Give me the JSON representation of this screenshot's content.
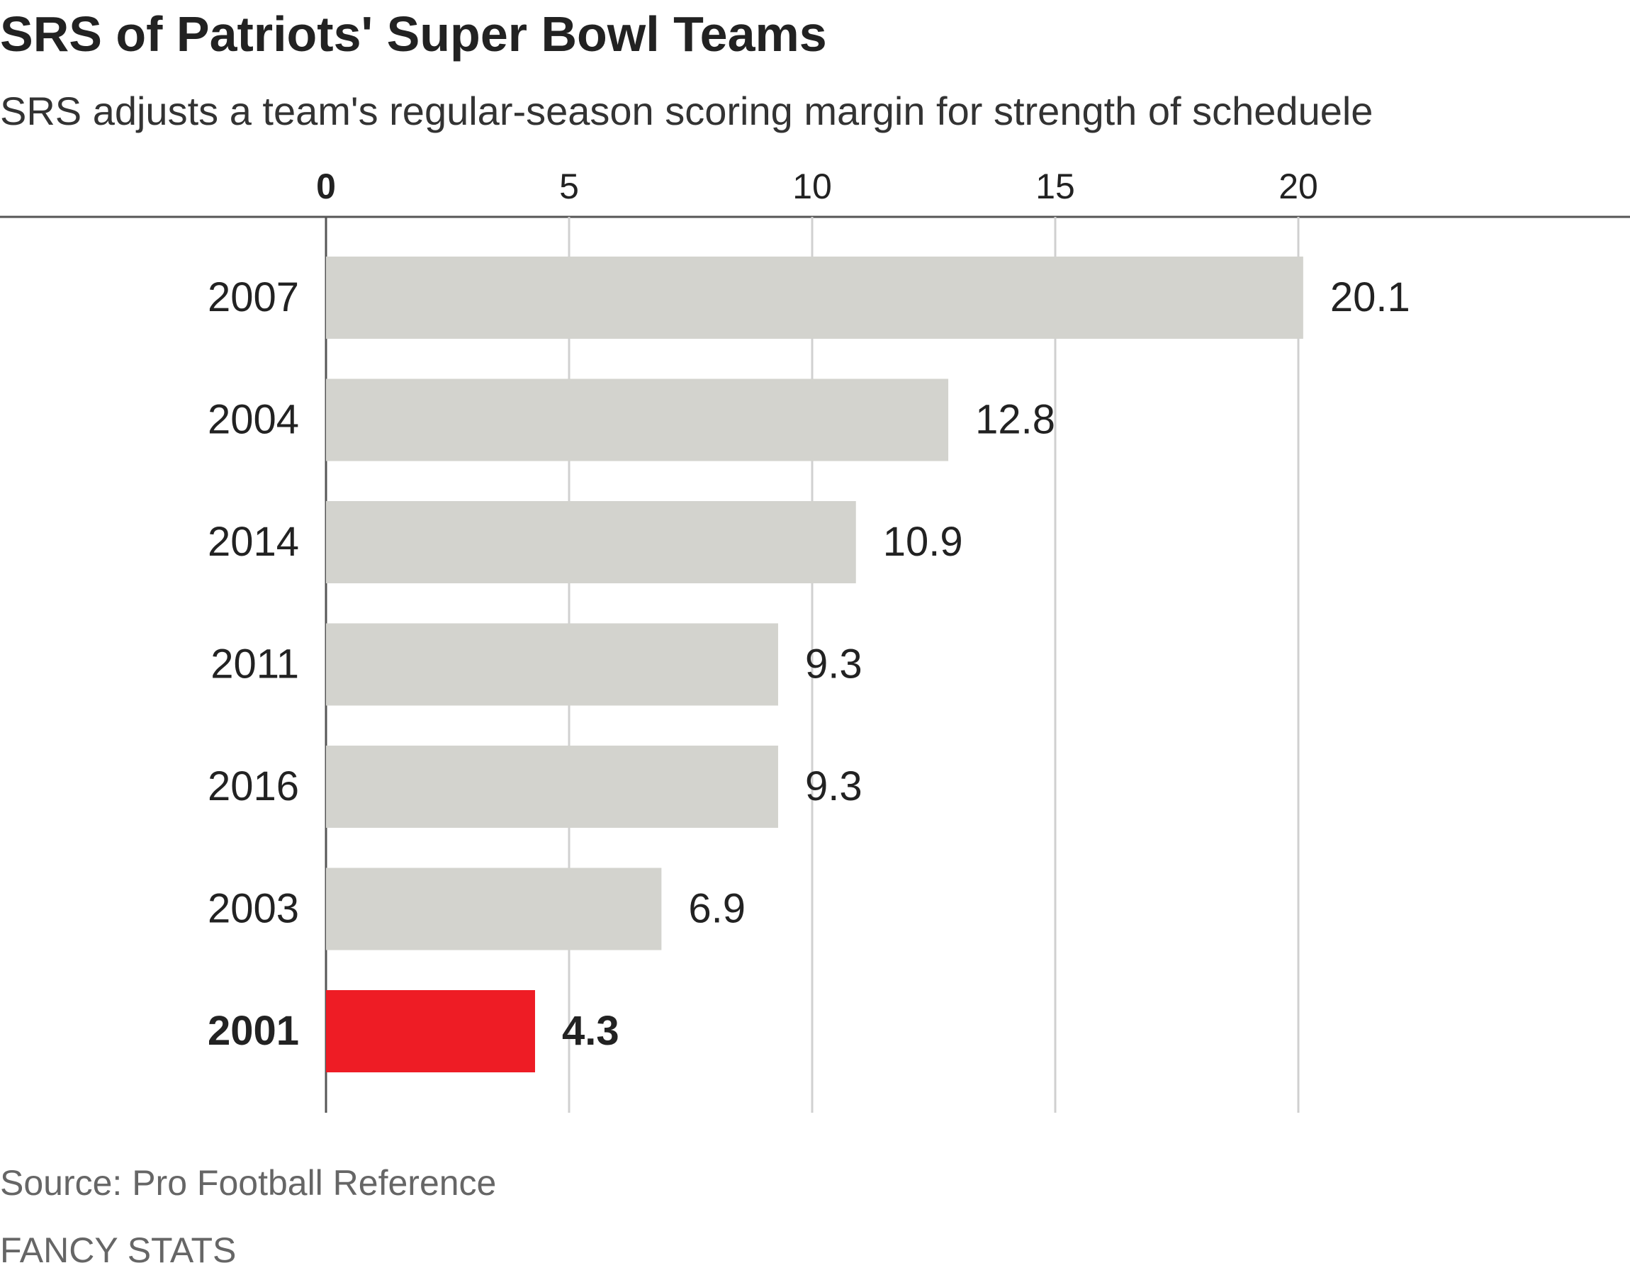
{
  "chart_data": {
    "type": "bar",
    "orientation": "horizontal",
    "title": "SRS of Patriots' Super Bowl Teams",
    "subtitle": "SRS adjusts a team's regular-season scoring margin for strength of scheduele",
    "categories": [
      "2007",
      "2004",
      "2014",
      "2011",
      "2016",
      "2003",
      "2001"
    ],
    "values": [
      20.1,
      12.8,
      10.9,
      9.3,
      9.3,
      6.9,
      4.3
    ],
    "value_labels": [
      "20.1",
      "12.8",
      "10.9",
      "9.3",
      "9.3",
      "6.9",
      "4.3"
    ],
    "highlight": "2001",
    "x_ticks": [
      0,
      5,
      10,
      15,
      20
    ],
    "xlim": [
      0,
      27.3
    ],
    "xlabel": "",
    "ylabel": "",
    "grid": true,
    "axis_position": "top",
    "colors": {
      "bar": "#d3d3ce",
      "highlight_bar": "#ee1c25",
      "grid": "#d0d0d0",
      "axis": "#555555"
    }
  },
  "footer": {
    "source": "Source: Pro Football Reference",
    "credit": "FANCY STATS"
  }
}
